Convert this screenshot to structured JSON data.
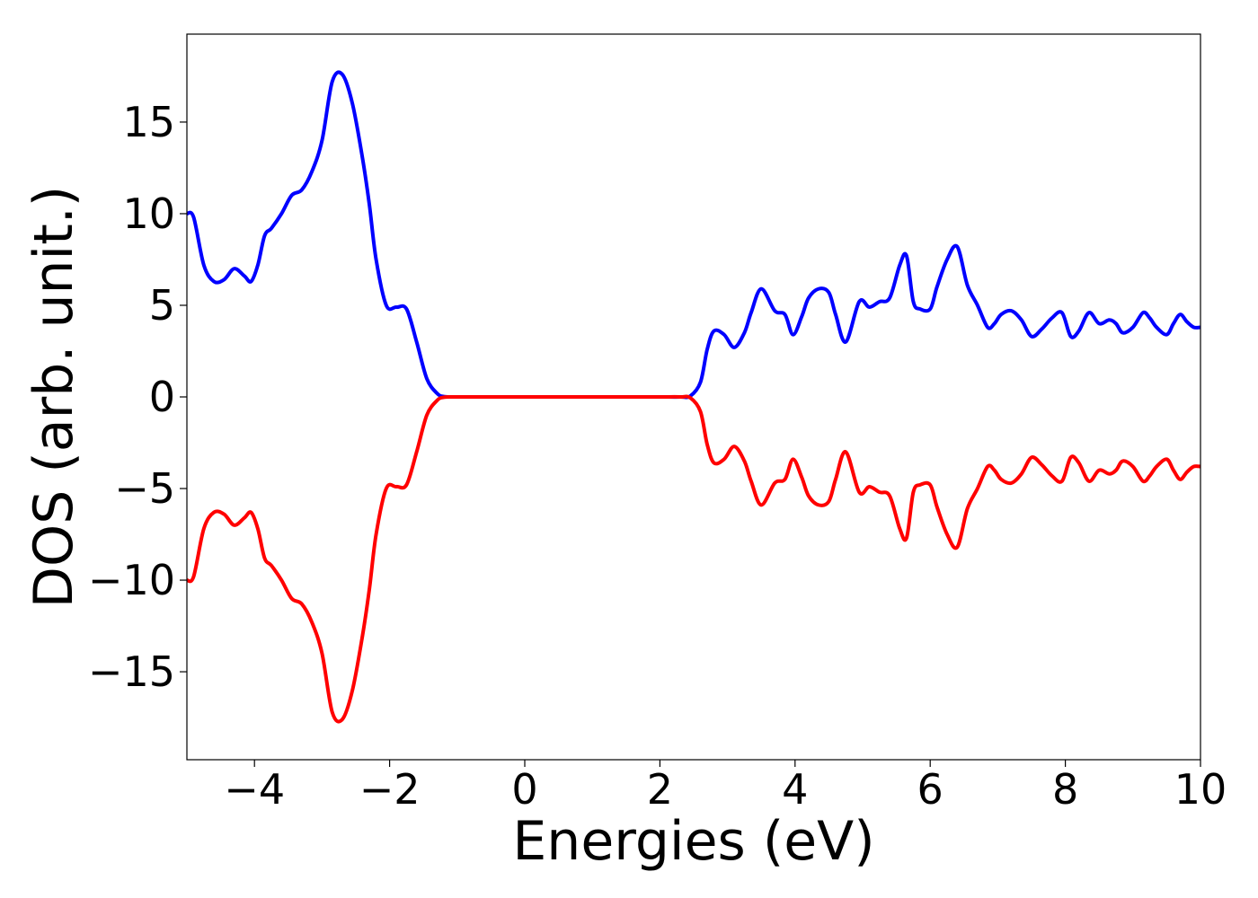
{
  "chart_data": {
    "type": "line",
    "xlabel": "Energies (eV)",
    "ylabel": "DOS (arb. unit.)",
    "xlim": [
      -5,
      10
    ],
    "ylim": [
      -19.8,
      19.8
    ],
    "xticks": [
      -4,
      -2,
      0,
      2,
      4,
      6,
      8,
      10
    ],
    "yticks": [
      -15,
      -10,
      -5,
      0,
      5,
      10,
      15
    ],
    "xtick_labels": [
      "−4",
      "−2",
      "0",
      "2",
      "4",
      "6",
      "8",
      "10"
    ],
    "ytick_labels": [
      "−15",
      "−10",
      "−5",
      "0",
      "5",
      "10",
      "15"
    ],
    "grid": false,
    "series": [
      {
        "color": "#0000ff",
        "x": [
          -5.0,
          -4.9,
          -4.75,
          -4.6,
          -4.45,
          -4.3,
          -4.15,
          -4.05,
          -3.95,
          -3.85,
          -3.75,
          -3.6,
          -3.45,
          -3.3,
          -3.15,
          -3.0,
          -2.85,
          -2.7,
          -2.55,
          -2.4,
          -2.3,
          -2.2,
          -2.05,
          -1.9,
          -1.75,
          -1.6,
          -1.45,
          -1.3,
          -1.2,
          -1.05,
          -0.9,
          -0.75,
          -0.6,
          -0.5,
          -0.3,
          0.0,
          0.5,
          1.0,
          1.5,
          2.0,
          2.3,
          2.45,
          2.6,
          2.7,
          2.8,
          2.95,
          3.1,
          3.25,
          3.35,
          3.5,
          3.7,
          3.85,
          3.97,
          4.1,
          4.2,
          4.35,
          4.5,
          4.6,
          4.75,
          4.95,
          5.1,
          5.25,
          5.4,
          5.55,
          5.65,
          5.75,
          5.85,
          6.0,
          6.1,
          6.25,
          6.4,
          6.55,
          6.7,
          6.85,
          6.95,
          7.05,
          7.2,
          7.35,
          7.5,
          7.65,
          7.8,
          7.95,
          8.08,
          8.2,
          8.35,
          8.5,
          8.65,
          8.75,
          8.85,
          9.0,
          9.15,
          9.25,
          9.35,
          9.5,
          9.6,
          9.7,
          9.8,
          9.9,
          10.0
        ],
        "y": [
          10.0,
          9.8,
          7.2,
          6.3,
          6.4,
          7.0,
          6.6,
          6.3,
          7.2,
          8.8,
          9.2,
          10.0,
          11.0,
          11.3,
          12.3,
          14.0,
          17.2,
          17.6,
          16.0,
          13.0,
          10.5,
          7.5,
          5.0,
          4.9,
          4.8,
          3.0,
          1.0,
          0.2,
          0.02,
          0.0,
          0.0,
          0.0,
          0.0,
          0.0,
          0.0,
          0.0,
          0.0,
          0.0,
          0.0,
          0.0,
          0.0,
          0.05,
          0.8,
          2.6,
          3.6,
          3.4,
          2.7,
          3.5,
          4.6,
          5.9,
          4.7,
          4.5,
          3.4,
          4.4,
          5.4,
          5.9,
          5.7,
          4.5,
          3.0,
          5.2,
          4.9,
          5.2,
          5.4,
          7.2,
          7.7,
          5.2,
          4.8,
          4.8,
          6.0,
          7.5,
          8.2,
          6.1,
          5.0,
          3.8,
          4.0,
          4.5,
          4.7,
          4.2,
          3.3,
          3.7,
          4.3,
          4.6,
          3.3,
          3.6,
          4.6,
          4.0,
          4.2,
          4.0,
          3.5,
          3.8,
          4.6,
          4.3,
          3.8,
          3.4,
          4.0,
          4.5,
          4.1,
          3.8,
          3.8
        ]
      },
      {
        "color": "#ff0000",
        "x": [
          -5.0,
          -4.9,
          -4.75,
          -4.6,
          -4.45,
          -4.3,
          -4.15,
          -4.05,
          -3.95,
          -3.85,
          -3.75,
          -3.6,
          -3.45,
          -3.3,
          -3.15,
          -3.0,
          -2.85,
          -2.7,
          -2.55,
          -2.4,
          -2.3,
          -2.2,
          -2.05,
          -1.9,
          -1.75,
          -1.6,
          -1.45,
          -1.3,
          -1.2,
          -1.05,
          -0.9,
          -0.75,
          -0.6,
          -0.5,
          -0.3,
          0.0,
          0.5,
          1.0,
          1.5,
          2.0,
          2.3,
          2.45,
          2.6,
          2.7,
          2.8,
          2.95,
          3.1,
          3.25,
          3.35,
          3.5,
          3.7,
          3.85,
          3.97,
          4.1,
          4.2,
          4.35,
          4.5,
          4.6,
          4.75,
          4.95,
          5.1,
          5.25,
          5.4,
          5.55,
          5.65,
          5.75,
          5.85,
          6.0,
          6.1,
          6.25,
          6.4,
          6.55,
          6.7,
          6.85,
          6.95,
          7.05,
          7.2,
          7.35,
          7.5,
          7.65,
          7.8,
          7.95,
          8.08,
          8.2,
          8.35,
          8.5,
          8.65,
          8.75,
          8.85,
          9.0,
          9.15,
          9.25,
          9.35,
          9.5,
          9.6,
          9.7,
          9.8,
          9.9,
          10.0
        ],
        "y": [
          -10.0,
          -9.8,
          -7.2,
          -6.3,
          -6.4,
          -7.0,
          -6.6,
          -6.3,
          -7.2,
          -8.8,
          -9.2,
          -10.0,
          -11.0,
          -11.3,
          -12.3,
          -14.0,
          -17.2,
          -17.6,
          -16.0,
          -13.0,
          -10.5,
          -7.5,
          -5.0,
          -4.9,
          -4.8,
          -3.0,
          -1.0,
          -0.2,
          -0.02,
          0.0,
          0.0,
          0.0,
          0.0,
          0.0,
          0.0,
          0.0,
          0.0,
          0.0,
          0.0,
          0.0,
          0.0,
          -0.05,
          -0.8,
          -2.6,
          -3.6,
          -3.4,
          -2.7,
          -3.5,
          -4.6,
          -5.9,
          -4.7,
          -4.5,
          -3.4,
          -4.4,
          -5.4,
          -5.9,
          -5.7,
          -4.5,
          -3.0,
          -5.2,
          -4.9,
          -5.2,
          -5.4,
          -7.2,
          -7.7,
          -5.2,
          -4.8,
          -4.8,
          -6.0,
          -7.5,
          -8.2,
          -6.1,
          -5.0,
          -3.8,
          -4.0,
          -4.5,
          -4.7,
          -4.2,
          -3.3,
          -3.7,
          -4.3,
          -4.6,
          -3.3,
          -3.6,
          -4.6,
          -4.0,
          -4.2,
          -4.0,
          -3.5,
          -3.8,
          -4.6,
          -4.3,
          -3.8,
          -3.4,
          -4.0,
          -4.5,
          -4.1,
          -3.8,
          -3.8
        ]
      }
    ]
  }
}
